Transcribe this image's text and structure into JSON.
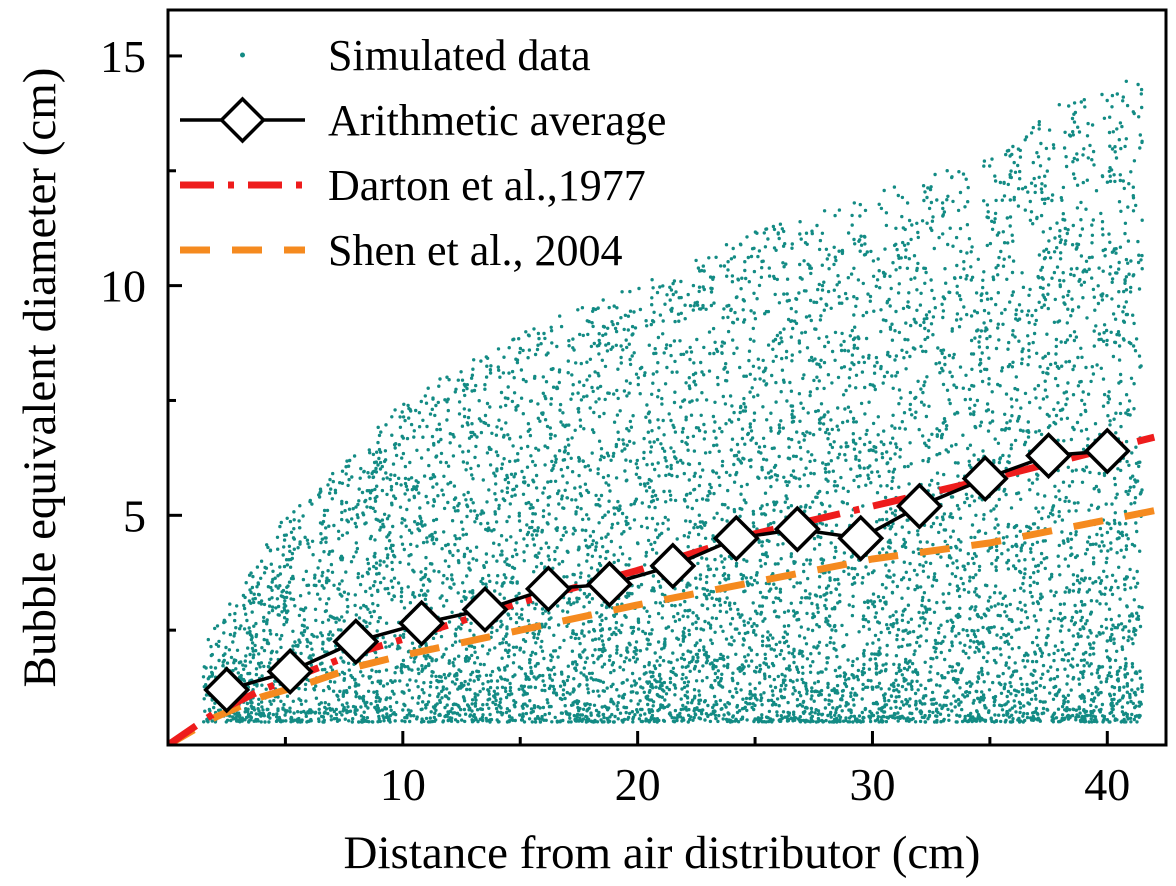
{
  "chart_data": {
    "type": "scatter",
    "title": "",
    "xlabel": "Distance from air distributor (cm)",
    "ylabel": "Bubble equivalent diameter (cm)",
    "xlim": [
      0,
      42.5
    ],
    "ylim": [
      0,
      16
    ],
    "x_ticks": [
      10,
      20,
      30,
      40
    ],
    "x_tick_labels": [
      "10",
      "20",
      "30",
      "40"
    ],
    "y_ticks": [
      5,
      10,
      15
    ],
    "y_tick_labels": [
      "5",
      "10",
      "15"
    ],
    "x_minor_step": 5,
    "y_minor_step": 2.5,
    "grid": false,
    "legend_position": "top-left",
    "series": [
      {
        "name": "Simulated data",
        "kind": "scatter",
        "color": "#138B84",
        "point_count": 9000,
        "x_range": [
          1.5,
          41.5
        ],
        "y_min": 0.5,
        "y_upper_envelope": {
          "x": [
            1.5,
            5,
            10,
            15,
            20,
            25,
            30,
            35,
            38,
            41
          ],
          "y": [
            2.2,
            5.0,
            7.5,
            9.0,
            10.0,
            11.2,
            12.0,
            12.8,
            14.0,
            14.5
          ]
        }
      },
      {
        "name": "Arithmetic average",
        "kind": "line-marker",
        "color": "#000000",
        "marker": "diamond",
        "x": [
          2.5,
          5.2,
          8.0,
          10.8,
          13.5,
          16.2,
          18.8,
          21.5,
          24.2,
          26.8,
          29.5,
          32.0,
          34.8,
          37.5,
          40.0
        ],
        "y": [
          1.2,
          1.6,
          2.25,
          2.65,
          2.95,
          3.4,
          3.5,
          3.9,
          4.5,
          4.7,
          4.5,
          5.2,
          5.8,
          6.3,
          6.4
        ]
      },
      {
        "name": "Darton et al.,1977",
        "kind": "line",
        "color": "#EE1C1C",
        "dash": "dash-dot",
        "x": [
          0,
          2,
          4,
          6,
          8,
          10,
          15,
          20,
          25,
          30,
          35,
          42
        ],
        "y": [
          0,
          0.7,
          1.2,
          1.6,
          2.0,
          2.3,
          3.1,
          3.8,
          4.6,
          5.2,
          5.8,
          6.7
        ]
      },
      {
        "name": "Shen et al., 2004",
        "kind": "line",
        "color": "#F58A1F",
        "dash": "dash",
        "x": [
          0,
          2,
          4,
          6,
          8,
          10,
          15,
          20,
          25,
          30,
          35,
          42
        ],
        "y": [
          0,
          0.6,
          1.05,
          1.35,
          1.7,
          1.95,
          2.5,
          3.05,
          3.55,
          4.05,
          4.4,
          5.1
        ]
      }
    ]
  }
}
